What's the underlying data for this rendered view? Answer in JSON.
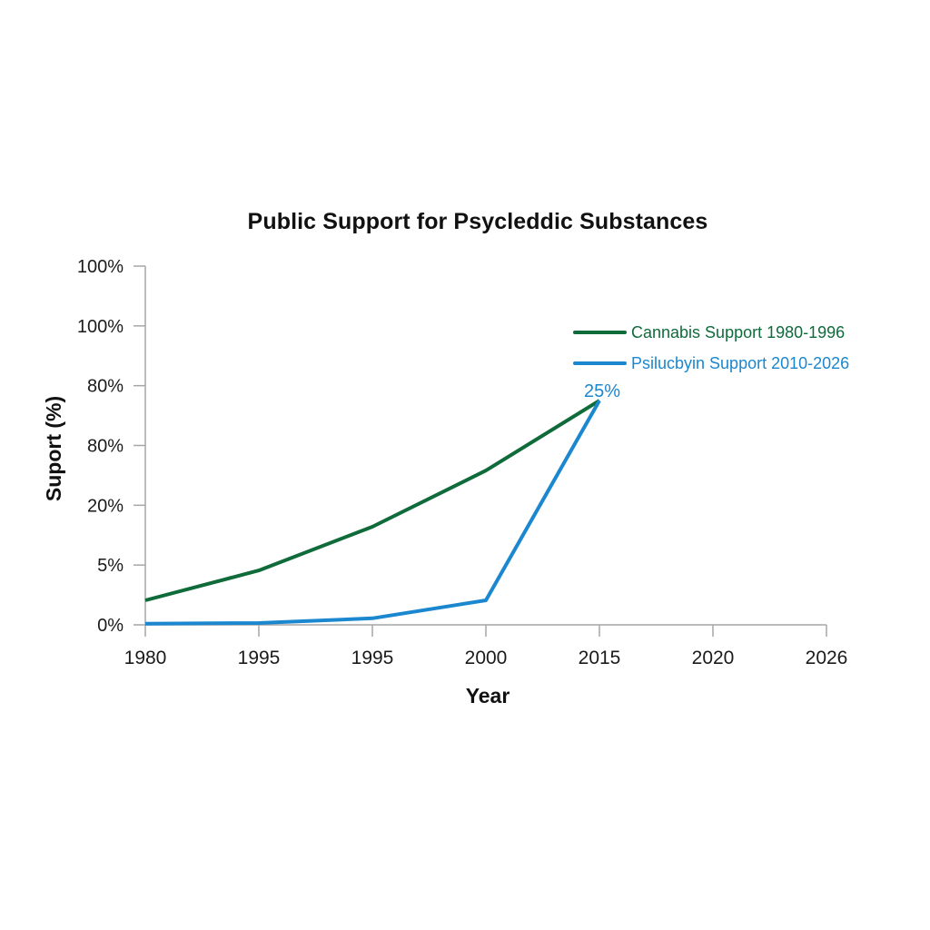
{
  "title": "Public Support for Psycleddic Substances",
  "colors": {
    "cannabis": "#0f6b3a",
    "psilocybin": "#1a87cf",
    "axis": "#a6a6a6",
    "text": "#1a1a1a"
  },
  "axes": {
    "x_title": "Year",
    "y_title": "Suport (%)",
    "y_ticks": [
      "100%",
      "100%",
      "80%",
      "80%",
      "20%",
      "5%",
      "0%"
    ],
    "x_ticks": [
      "1980",
      "1995",
      "1995",
      "2000",
      "2015",
      "2020",
      "2026"
    ]
  },
  "legend": {
    "items": [
      {
        "label": "Cannabis Support 1980-1996",
        "color": "#0f6b3a"
      },
      {
        "label": "Psilucbyin Support 2010-2026",
        "color": "#1a87cf"
      }
    ]
  },
  "annotation": {
    "label": "25%"
  },
  "chart_data": {
    "type": "line",
    "title": "Public Support for Psycleddic Substances",
    "xlabel": "Year",
    "ylabel": "Suport (%)",
    "categories": [
      "1980",
      "1995",
      "1995",
      "2000",
      "2015",
      "2020",
      "2026"
    ],
    "y_tick_labels_top_to_bottom": [
      "100%",
      "100%",
      "80%",
      "80%",
      "20%",
      "5%",
      "0%"
    ],
    "note": "Values given in tick-index units (0 = '0%' baseline, 6 = top '100%' tick), since the axis labels are non-monotonic",
    "series": [
      {
        "name": "Cannabis Support 1980-1996",
        "color": "#0f6b3a",
        "x": [
          "1980",
          "1995",
          "1995",
          "2000",
          "2015"
        ],
        "values": [
          0.41,
          0.91,
          1.64,
          2.58,
          3.75
        ]
      },
      {
        "name": "Psilucbyin Support 2010-2026",
        "color": "#1a87cf",
        "x": [
          "1980",
          "1995",
          "1995",
          "2000",
          "2015"
        ],
        "values": [
          0.02,
          0.03,
          0.11,
          0.41,
          3.75
        ]
      }
    ],
    "annotations": [
      {
        "text": "25%",
        "at": "2015",
        "series": "Psilucbyin Support 2010-2026"
      }
    ],
    "grid": false,
    "legend_position": "upper right inside plot"
  }
}
